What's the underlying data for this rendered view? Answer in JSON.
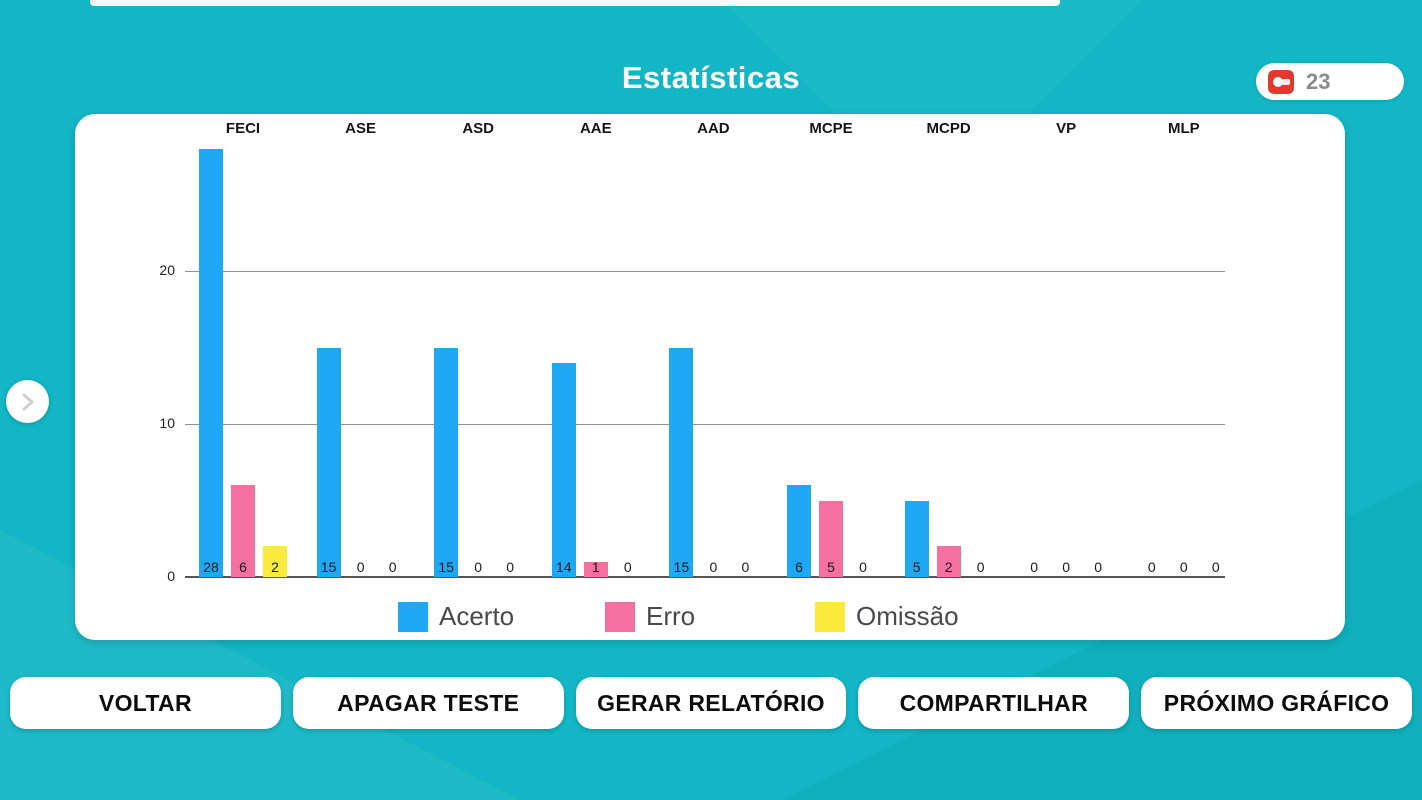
{
  "header": {
    "title": "Estatísticas",
    "counter_value": "23"
  },
  "chart_data": {
    "type": "bar",
    "title": "Estatísticas",
    "categories": [
      "FECI",
      "ASE",
      "ASD",
      "AAE",
      "AAD",
      "MCPE",
      "MCPD",
      "VP",
      "MLP"
    ],
    "series": [
      {
        "name": "Acerto",
        "color": "#1ea7f2",
        "values": [
          28,
          15,
          15,
          14,
          15,
          6,
          5,
          0,
          0
        ]
      },
      {
        "name": "Erro",
        "color": "#f4719f",
        "values": [
          6,
          0,
          0,
          1,
          0,
          5,
          2,
          0,
          0
        ]
      },
      {
        "name": "Omissão",
        "color": "#f9ea3c",
        "values": [
          2,
          0,
          0,
          0,
          0,
          0,
          0,
          0,
          0
        ]
      }
    ],
    "yticks": [
      0,
      10,
      20
    ],
    "ylim": [
      0,
      28
    ],
    "grid": true,
    "legend_position": "bottom"
  },
  "buttons": [
    {
      "label": "VOLTAR"
    },
    {
      "label": "APAGAR TESTE"
    },
    {
      "label": "GERAR RELATÓRIO"
    },
    {
      "label": "COMPARTILHAR"
    },
    {
      "label": "PRÓXIMO GRÁFICO"
    }
  ],
  "colors": {
    "background": "#12b6c4",
    "accent_blue": "#1ea7f2",
    "accent_pink": "#f4719f",
    "accent_yellow": "#f9ea3c"
  }
}
